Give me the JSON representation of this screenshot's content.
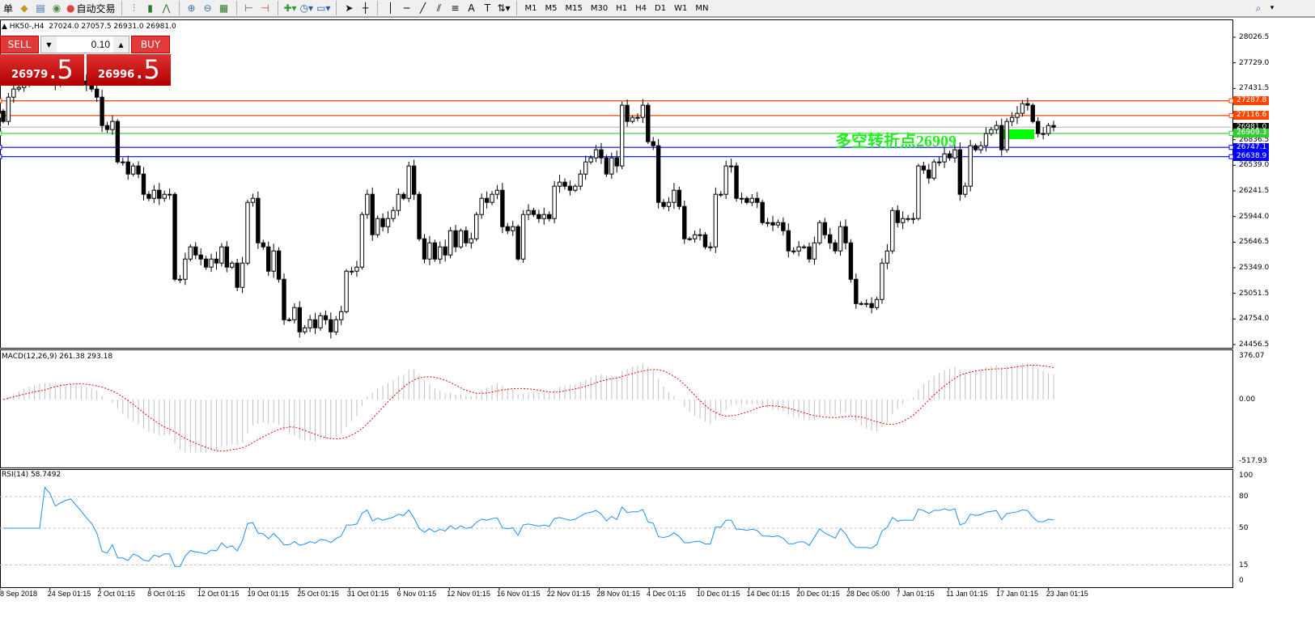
{
  "toolbar": {
    "items": [
      {
        "name": "orders-partial",
        "label": "单"
      },
      {
        "name": "market-watch",
        "icon": "gold-bar-icon"
      },
      {
        "name": "navigator",
        "icon": "computer-icon"
      },
      {
        "name": "signals",
        "icon": "signal-icon"
      },
      {
        "name": "auto-trading",
        "icon": "robot-icon",
        "label": "自动交易"
      }
    ],
    "chart_tools": [
      "bar-chart-icon",
      "candlestick-icon",
      "line-chart-icon",
      "zoom-in-icon",
      "zoom-out-icon",
      "tile-windows-icon",
      "auto-scroll-icon",
      "chart-shift-icon",
      "indicators-icon",
      "periods-icon",
      "templates-icon",
      "cursor-icon",
      "crosshair-icon",
      "vertical-line-icon",
      "horizontal-line-icon",
      "trendline-icon",
      "equidistant-channel-icon",
      "fibonacci-icon",
      "text-icon",
      "text-label-icon",
      "arrows-icon"
    ],
    "text_tool_label": "A",
    "timeframes": [
      "M1",
      "M5",
      "M15",
      "M30",
      "H1",
      "H4",
      "D1",
      "W1",
      "MN"
    ]
  },
  "header": {
    "symbol": "HK50-,H4",
    "ohlc": "27024.0 27057.5 26931.0 26981.0"
  },
  "trade_panel": {
    "sell_label": "SELL",
    "buy_label": "BUY",
    "lot": "0.10",
    "sell_price_main": "26979",
    "sell_price_last": ".5",
    "buy_price_main": "26996",
    "buy_price_last": ".5"
  },
  "annotation": {
    "text": "多空转折点26909",
    "color": "#22ee22"
  },
  "price_axis": [
    "28026.5",
    "27729.0",
    "27431.5",
    "26836.5",
    "26539.0",
    "26241.5",
    "25944.0",
    "25646.5",
    "25349.0",
    "25051.5",
    "24754.0",
    "24456.5"
  ],
  "levels": [
    {
      "value": "27287.8",
      "color": "#ff4500"
    },
    {
      "value": "27116.6",
      "color": "#ff4500"
    },
    {
      "value": "26981.0",
      "color": "#000000",
      "line": "#c0c0c0"
    },
    {
      "value": "26909.3",
      "color": "#32cd32"
    },
    {
      "value": "26747.1",
      "color": "#0000ff"
    },
    {
      "value": "26638.9",
      "color": "#0000ff"
    }
  ],
  "macd": {
    "label": "MACD(12,26,9) 261.38 293.18",
    "axis": [
      "376.07",
      "0.00",
      "-517.93"
    ],
    "max": 376.07,
    "min": -517.93
  },
  "rsi": {
    "label": "RSI(14) 58.7492",
    "axis": [
      "100",
      "80",
      "50",
      "15",
      "0"
    ],
    "levels": [
      80,
      50,
      15
    ]
  },
  "time_axis": [
    "8 Sep 2018",
    "24 Sep 01:15",
    "2 Oct 01:15",
    "8 Oct 01:15",
    "12 Oct 01:15",
    "19 Oct 01:15",
    "25 Oct 01:15",
    "31 Oct 01:15",
    "6 Nov 01:15",
    "12 Nov 01:15",
    "16 Nov 01:15",
    "22 Nov 01:15",
    "28 Nov 01:15",
    "4 Dec 01:15",
    "10 Dec 01:15",
    "14 Dec 01:15",
    "20 Dec 01:15",
    "28 Dec 05:00",
    "7 Jan 01:15",
    "11 Jan 01:15",
    "17 Jan 01:15",
    "23 Jan 01:15"
  ],
  "chart_data": {
    "type": "candlestick",
    "ylim": [
      24456.5,
      28026.5
    ],
    "closes": [
      27048,
      27330,
      27424,
      27443,
      27518,
      27565,
      27593,
      27612,
      27565,
      27537,
      27471,
      27518,
      27565,
      27593,
      27556,
      27518,
      27471,
      27424,
      27330,
      27001,
      26954,
      27048,
      26578,
      26578,
      26437,
      26531,
      26437,
      26202,
      26155,
      26249,
      26155,
      26202,
      26202,
      25215,
      25215,
      25450,
      25591,
      25497,
      25450,
      25356,
      25450,
      25403,
      25591,
      25356,
      25403,
      25121,
      25403,
      26108,
      26155,
      25638,
      25591,
      25309,
      25544,
      25215,
      24745,
      24745,
      24886,
      24604,
      24651,
      24745,
      24651,
      24792,
      24745,
      24604,
      24745,
      24839,
      25309,
      25309,
      25356,
      25967,
      26202,
      25732,
      25920,
      25826,
      25920,
      26014,
      26202,
      26155,
      26531,
      26202,
      25685,
      25450,
      25638,
      25450,
      25591,
      25497,
      25779,
      25591,
      25779,
      25638,
      25685,
      25967,
      26155,
      26108,
      26202,
      26249,
      25826,
      25779,
      25826,
      25450,
      25967,
      26014,
      25967,
      25920,
      25967,
      25920,
      26296,
      26343,
      26296,
      26249,
      26296,
      26437,
      26578,
      26625,
      26719,
      26625,
      26437,
      26625,
      26531,
      27236,
      27048,
      27095,
      27095,
      27236,
      26813,
      26766,
      26108,
      26061,
      26108,
      26249,
      26061,
      25685,
      25685,
      25732,
      25732,
      25591,
      25591,
      26202,
      26202,
      26531,
      26531,
      26155,
      26155,
      26108,
      26155,
      26108,
      25873,
      25873,
      25845,
      25873,
      25779,
      25544,
      25544,
      25591,
      25591,
      25450,
      25638,
      25873,
      25732,
      25638,
      25544,
      25826,
      25638,
      25215,
      24933,
      24933,
      24933,
      24886,
      24980,
      25403,
      25544,
      26014,
      25873,
      25920,
      25920,
      25920,
      26531,
      26484,
      26390,
      26578,
      26578,
      26672,
      26625,
      26719,
      26202,
      26296,
      26766,
      26719,
      26766,
      26907,
      26954,
      27001,
      26719,
      27048,
      27095,
      27142,
      27255,
      27236,
      27048,
      26907,
      26907,
      27001,
      26981
    ]
  }
}
